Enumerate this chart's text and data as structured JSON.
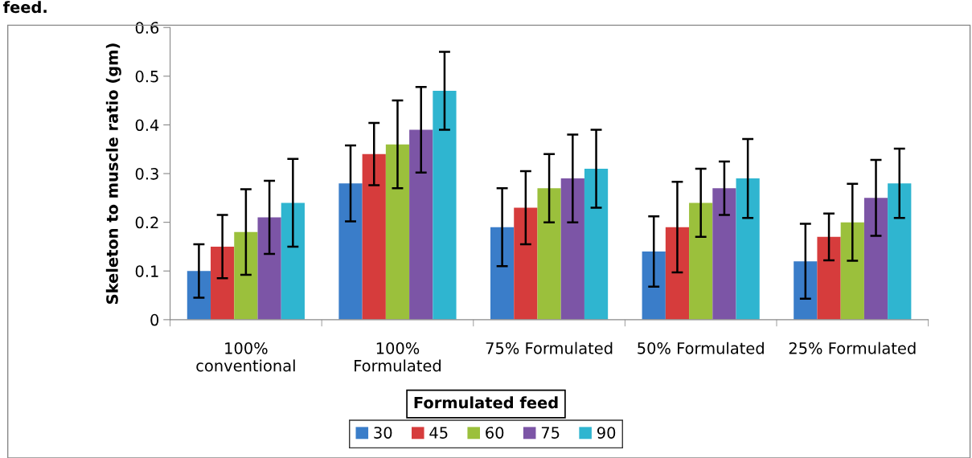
{
  "chart_data": {
    "type": "bar",
    "xlabel": "Formulated feed",
    "ylabel": "Skeleton to muscle ratio (gm)",
    "annotations": [
      "feed."
    ],
    "categories": [
      "100%\nconventional",
      "100%\nFormulated",
      "75% Formulated",
      "50% Formulated",
      "25% Formulated"
    ],
    "series": [
      {
        "name": "30",
        "color": "#3a7dc9",
        "values": [
          0.1,
          0.28,
          0.19,
          0.14,
          0.12
        ],
        "errors": [
          0.055,
          0.078,
          0.08,
          0.072,
          0.077
        ]
      },
      {
        "name": "45",
        "color": "#d63c3c",
        "values": [
          0.15,
          0.34,
          0.23,
          0.19,
          0.17
        ],
        "errors": [
          0.065,
          0.064,
          0.075,
          0.093,
          0.048
        ]
      },
      {
        "name": "60",
        "color": "#9bc03c",
        "values": [
          0.18,
          0.36,
          0.27,
          0.24,
          0.2
        ],
        "errors": [
          0.088,
          0.09,
          0.07,
          0.07,
          0.079
        ]
      },
      {
        "name": "75",
        "color": "#7c55a6",
        "values": [
          0.21,
          0.39,
          0.29,
          0.27,
          0.25
        ],
        "errors": [
          0.075,
          0.088,
          0.09,
          0.055,
          0.078
        ]
      },
      {
        "name": "90",
        "color": "#2fb5d0",
        "values": [
          0.24,
          0.47,
          0.31,
          0.29,
          0.28
        ],
        "errors": [
          0.09,
          0.08,
          0.08,
          0.081,
          0.071
        ]
      }
    ],
    "ylim": [
      0,
      0.6
    ],
    "yticks": [
      0,
      0.1,
      0.2,
      0.3,
      0.4,
      0.5,
      0.6
    ],
    "grid": false,
    "legend": "bottom"
  }
}
